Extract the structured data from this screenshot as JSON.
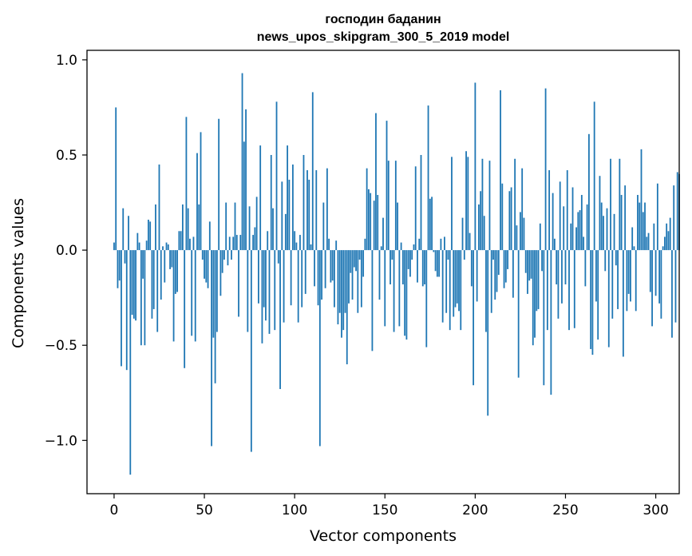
{
  "chart_data": {
    "type": "bar",
    "title_line1": "господин баданин",
    "title_line2": "news_upos_skipgram_300_5_2019 model",
    "xlabel": "Vector components",
    "ylabel": "Components values",
    "xlim": [
      -15,
      313
    ],
    "ylim": [
      -1.28,
      1.05
    ],
    "xticks": [
      0,
      50,
      100,
      150,
      200,
      250,
      300
    ],
    "xtick_labels": [
      "0",
      "50",
      "100",
      "150",
      "200",
      "250",
      "300"
    ],
    "yticks": [
      1.0,
      0.5,
      0.0,
      -0.5,
      -1.0
    ],
    "ytick_labels": [
      "1.0",
      "0.5",
      "0.0",
      "−0.5",
      "−1.0"
    ],
    "bar_color": "#1f77b4",
    "values": [
      0.04,
      0.75,
      -0.2,
      -0.16,
      -0.61,
      0.22,
      -0.07,
      -0.63,
      0.18,
      -1.18,
      -0.34,
      -0.36,
      -0.37,
      0.09,
      0.04,
      -0.5,
      -0.15,
      -0.5,
      0.05,
      0.16,
      0.15,
      -0.36,
      -0.31,
      0.24,
      -0.43,
      0.45,
      -0.26,
      0.02,
      -0.17,
      0.04,
      0.03,
      -0.1,
      -0.09,
      -0.48,
      -0.23,
      -0.22,
      0.1,
      0.1,
      0.24,
      -0.62,
      0.7,
      0.22,
      0.06,
      -0.45,
      0.07,
      -0.48,
      0.51,
      0.24,
      0.62,
      -0.05,
      -0.15,
      -0.17,
      -0.2,
      0.15,
      -1.03,
      -0.46,
      -0.7,
      -0.43,
      0.69,
      -0.24,
      -0.12,
      -0.05,
      0.25,
      -0.08,
      0.07,
      -0.05,
      0.07,
      0.25,
      0.08,
      -0.35,
      0.08,
      0.93,
      0.57,
      0.74,
      -0.43,
      0.23,
      -1.06,
      0.08,
      0.12,
      0.28,
      -0.28,
      0.55,
      -0.49,
      -0.3,
      -0.37,
      0.1,
      -0.44,
      0.5,
      0.22,
      -0.42,
      0.78,
      -0.07,
      -0.73,
      0.36,
      -0.38,
      0.19,
      0.55,
      0.37,
      -0.29,
      0.45,
      0.1,
      0.04,
      -0.38,
      0.08,
      -0.3,
      0.5,
      -0.23,
      0.42,
      0.37,
      0.03,
      0.83,
      -0.19,
      0.42,
      -0.29,
      -1.03,
      -0.26,
      0.25,
      -0.2,
      0.43,
      0.06,
      -0.17,
      -0.16,
      -0.3,
      0.05,
      -0.39,
      -0.33,
      -0.46,
      -0.42,
      -0.33,
      -0.6,
      -0.28,
      -0.12,
      -0.26,
      -0.09,
      -0.11,
      -0.33,
      -0.05,
      -0.3,
      -0.14,
      0.06,
      0.43,
      0.32,
      0.3,
      -0.53,
      0.26,
      0.72,
      0.29,
      -0.26,
      0.02,
      0.17,
      -0.4,
      0.68,
      0.47,
      -0.18,
      -0.05,
      -0.43,
      0.47,
      0.25,
      -0.4,
      0.04,
      -0.18,
      -0.45,
      -0.47,
      -0.1,
      -0.14,
      -0.05,
      0.03,
      0.44,
      -0.17,
      0.06,
      0.5,
      -0.19,
      -0.18,
      -0.51,
      0.76,
      0.27,
      0.28,
      -0.01,
      -0.11,
      -0.14,
      -0.14,
      0.06,
      -0.38,
      0.07,
      -0.33,
      -0.05,
      -0.42,
      0.49,
      -0.35,
      -0.3,
      -0.28,
      -0.32,
      -0.42,
      0.17,
      -0.05,
      0.52,
      0.49,
      0.09,
      -0.19,
      -0.71,
      0.88,
      -0.27,
      0.24,
      0.31,
      0.48,
      0.18,
      -0.43,
      -0.87,
      0.47,
      -0.33,
      -0.05,
      -0.26,
      -0.22,
      -0.13,
      0.84,
      0.35,
      -0.2,
      -0.17,
      -0.1,
      0.31,
      0.33,
      -0.25,
      0.48,
      0.13,
      -0.67,
      0.2,
      0.43,
      0.17,
      -0.12,
      -0.23,
      -0.16,
      -0.15,
      -0.5,
      -0.46,
      -0.32,
      -0.31,
      0.14,
      -0.11,
      -0.71,
      0.85,
      -0.42,
      0.42,
      -0.76,
      0.3,
      0.06,
      -0.18,
      -0.36,
      0.36,
      -0.28,
      0.23,
      -0.18,
      0.42,
      -0.42,
      0.14,
      0.33,
      -0.41,
      0.12,
      0.2,
      0.21,
      0.29,
      0.07,
      -0.19,
      0.24,
      0.61,
      -0.52,
      -0.55,
      0.78,
      -0.27,
      -0.47,
      0.39,
      0.25,
      0.18,
      -0.11,
      0.22,
      -0.51,
      0.48,
      -0.36,
      0.19,
      -0.08,
      -0.31,
      0.48,
      0.29,
      -0.56,
      0.34,
      -0.32,
      -0.23,
      -0.27,
      0.12,
      0.02,
      -0.32,
      0.29,
      0.25,
      0.53,
      0.2,
      0.25,
      0.07,
      0.09,
      -0.22,
      -0.4,
      0.14,
      -0.24,
      0.35,
      -0.28,
      -0.36,
      0.02,
      0.07,
      0.14,
      0.1,
      0.17,
      -0.46,
      0.34,
      -0.38,
      0.41,
      0.4
    ]
  }
}
